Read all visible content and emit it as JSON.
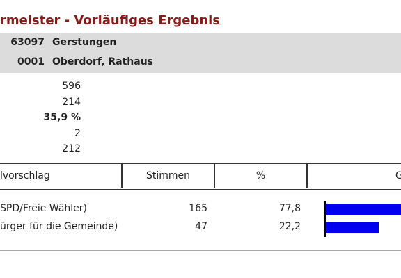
{
  "header": {
    "title": "rmeister - Vorläufiges Ergebnis",
    "rows": [
      {
        "code": "63097",
        "name": "Gerstungen"
      },
      {
        "code": "0001",
        "name": "Oberdorf, Rathaus"
      }
    ]
  },
  "summary": [
    596,
    214,
    "35,9 %",
    2,
    212
  ],
  "table": {
    "columns": [
      "lvorschlag",
      "Stimmen",
      "%",
      "G"
    ],
    "rows": [
      {
        "party": "SPD/Freie Wähler)",
        "votes": 165,
        "percent": {
          "value": 77.8,
          "label": "77,8"
        }
      },
      {
        "party": "ürger für die Gemeinde)",
        "votes": 47,
        "percent": {
          "value": 22.2,
          "label": "22,2"
        }
      }
    ]
  }
}
